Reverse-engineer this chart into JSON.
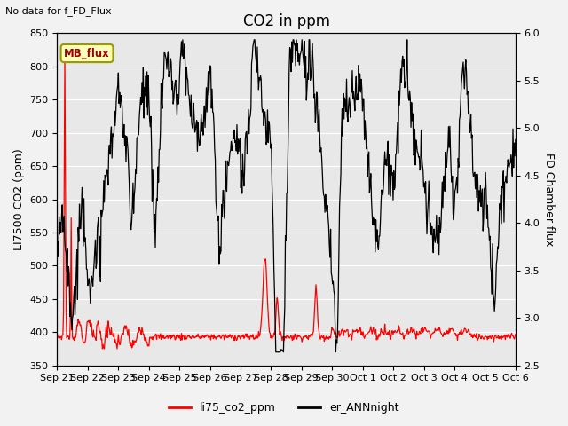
{
  "title": "CO2 in ppm",
  "top_left_text": "No data for f_FD_Flux",
  "ylabel_left": "LI7500 CO2 (ppm)",
  "ylabel_right": "FD Chamber flux",
  "ylim_left": [
    350,
    850
  ],
  "ylim_right": [
    2.5,
    6.0
  ],
  "yticks_left": [
    350,
    400,
    450,
    500,
    550,
    600,
    650,
    700,
    750,
    800,
    850
  ],
  "yticks_right": [
    2.5,
    3.0,
    3.5,
    4.0,
    4.5,
    5.0,
    5.5,
    6.0
  ],
  "xtick_labels": [
    "Sep 21",
    "Sep 22",
    "Sep 23",
    "Sep 24",
    "Sep 25",
    "Sep 26",
    "Sep 27",
    "Sep 28",
    "Sep 29",
    "Sep 30",
    "Oct 1",
    "Oct 2",
    "Oct 3",
    "Oct 4",
    "Oct 5",
    "Oct 6"
  ],
  "legend_labels": [
    "li75_co2_ppm",
    "er_ANNnight"
  ],
  "legend_colors": [
    "red",
    "black"
  ],
  "mb_flux_box_color": "#ffffbb",
  "mb_flux_text_color": "#990000",
  "mb_flux_border_color": "#999900",
  "plot_bg_color": "#e8e8e8",
  "fig_bg_color": "#f2f2f2",
  "line_color_red": "#ff0000",
  "line_color_black": "#000000",
  "title_fontsize": 12,
  "label_fontsize": 9,
  "tick_fontsize": 8
}
